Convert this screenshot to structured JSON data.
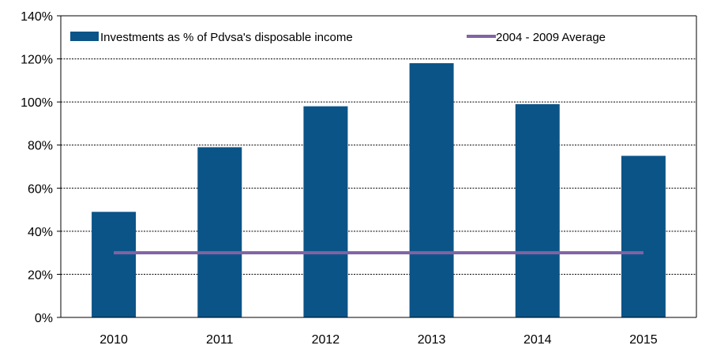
{
  "chart_data": {
    "type": "bar",
    "categories": [
      "2010",
      "2011",
      "2012",
      "2013",
      "2014",
      "2015"
    ],
    "series": [
      {
        "name": "Investments as % of Pdvsa's disposable income",
        "type": "bar",
        "values": [
          49,
          79,
          98,
          118,
          99,
          75
        ],
        "color": "#0b5488"
      },
      {
        "name": "2004 - 2009 Average",
        "type": "line",
        "values": [
          30,
          30,
          30,
          30,
          30,
          30
        ],
        "color": "#8064a2"
      }
    ],
    "ylim": [
      0,
      140
    ],
    "yticks": [
      0,
      20,
      40,
      60,
      80,
      100,
      120,
      140
    ],
    "ytick_labels": [
      "0%",
      "20%",
      "40%",
      "60%",
      "80%",
      "100%",
      "120%",
      "140%"
    ],
    "grid": true,
    "legend_position": "top"
  }
}
